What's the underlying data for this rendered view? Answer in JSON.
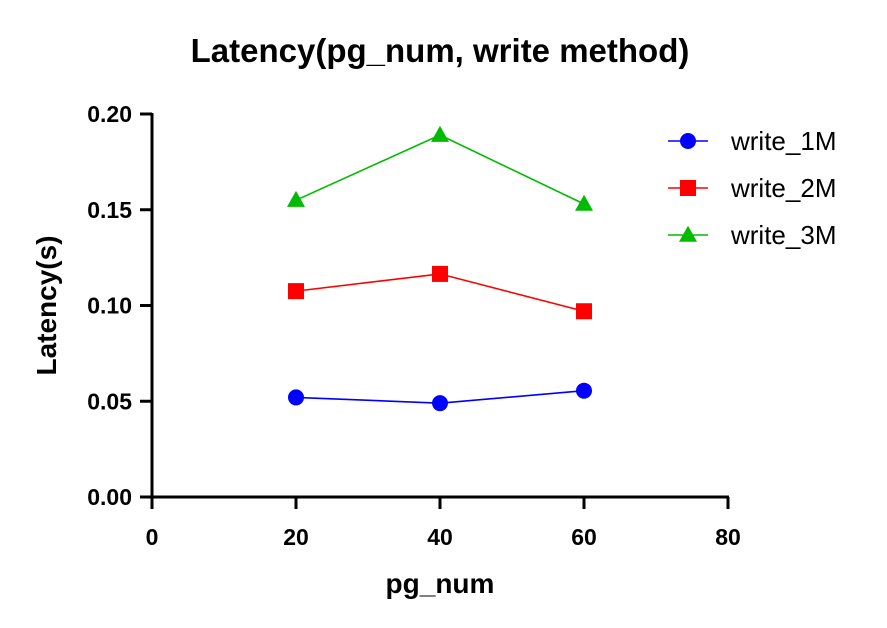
{
  "chart_data": {
    "type": "line",
    "title": "Latency(pg_num, write method)",
    "xlabel": "pg_num",
    "ylabel": "Latency(s)",
    "xlim": [
      0,
      80
    ],
    "ylim": [
      0,
      0.2
    ],
    "xticks": [
      "0",
      "20",
      "40",
      "60",
      "80"
    ],
    "yticks": [
      "0.00",
      "0.05",
      "0.10",
      "0.15",
      "0.20"
    ],
    "x": [
      20,
      40,
      60
    ],
    "grid": false,
    "legend_position": "top-right",
    "series": [
      {
        "name": "write_1M",
        "values": [
          0.052,
          0.049,
          0.0555
        ],
        "color": "#0000ff",
        "marker": "circle"
      },
      {
        "name": "write_2M",
        "values": [
          0.1075,
          0.1165,
          0.097
        ],
        "color": "#ff0000",
        "marker": "square"
      },
      {
        "name": "write_3M",
        "values": [
          0.155,
          0.189,
          0.153
        ],
        "color": "#00bb00",
        "marker": "triangle"
      }
    ]
  }
}
